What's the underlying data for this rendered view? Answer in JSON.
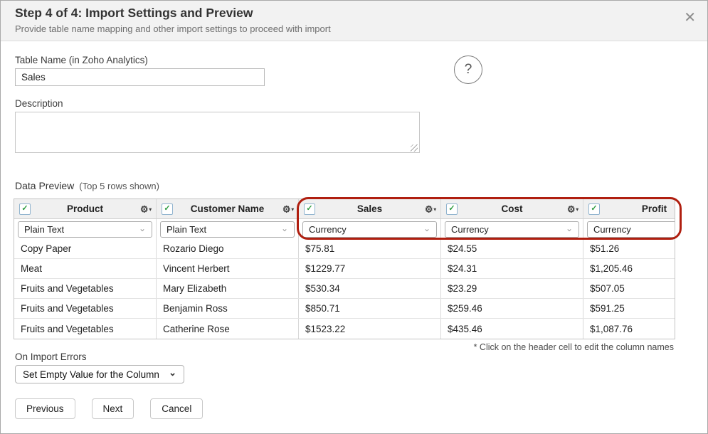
{
  "dialog": {
    "title": "Step 4 of 4: Import Settings and Preview",
    "subtitle": "Provide table name mapping and other import settings to proceed with import"
  },
  "form": {
    "table_name_label": "Table Name (in Zoho Analytics)",
    "table_name_value": "Sales",
    "description_label": "Description",
    "description_value": ""
  },
  "preview": {
    "title": "Data Preview",
    "hint": "(Top 5 rows shown)",
    "footnote": "* Click on the header cell to edit the column names",
    "annotation_color": "#b01f10",
    "columns": [
      {
        "name": "Product",
        "type": "Plain Text",
        "checked": true
      },
      {
        "name": "Customer Name",
        "type": "Plain Text",
        "checked": true
      },
      {
        "name": "Sales",
        "type": "Currency",
        "checked": true
      },
      {
        "name": "Cost",
        "type": "Currency",
        "checked": true
      },
      {
        "name": "Profit",
        "type": "Currency",
        "checked": true
      }
    ],
    "rows": [
      [
        "Copy Paper",
        "Rozario Diego",
        "$75.81",
        "$24.55",
        "$51.26"
      ],
      [
        "Meat",
        "Vincent Herbert",
        "$1229.77",
        "$24.31",
        "$1,205.46"
      ],
      [
        "Fruits and Vegetables",
        "Mary Elizabeth",
        "$530.34",
        "$23.29",
        "$507.05"
      ],
      [
        "Fruits and Vegetables",
        "Benjamin Ross",
        "$850.71",
        "$259.46",
        "$591.25"
      ],
      [
        "Fruits and Vegetables",
        "Catherine Rose",
        "$1523.22",
        "$435.46",
        "$1,087.76"
      ]
    ]
  },
  "import_errors": {
    "label": "On Import Errors",
    "selected": "Set Empty Value for the Column"
  },
  "buttons": {
    "previous": "Previous",
    "next": "Next",
    "cancel": "Cancel"
  },
  "icons": {
    "close": "✕",
    "help": "?",
    "check": "✓",
    "gear": "⚙",
    "gear_caret": "▾",
    "select_chevron": "⌄",
    "err_chevron": "⌄"
  }
}
